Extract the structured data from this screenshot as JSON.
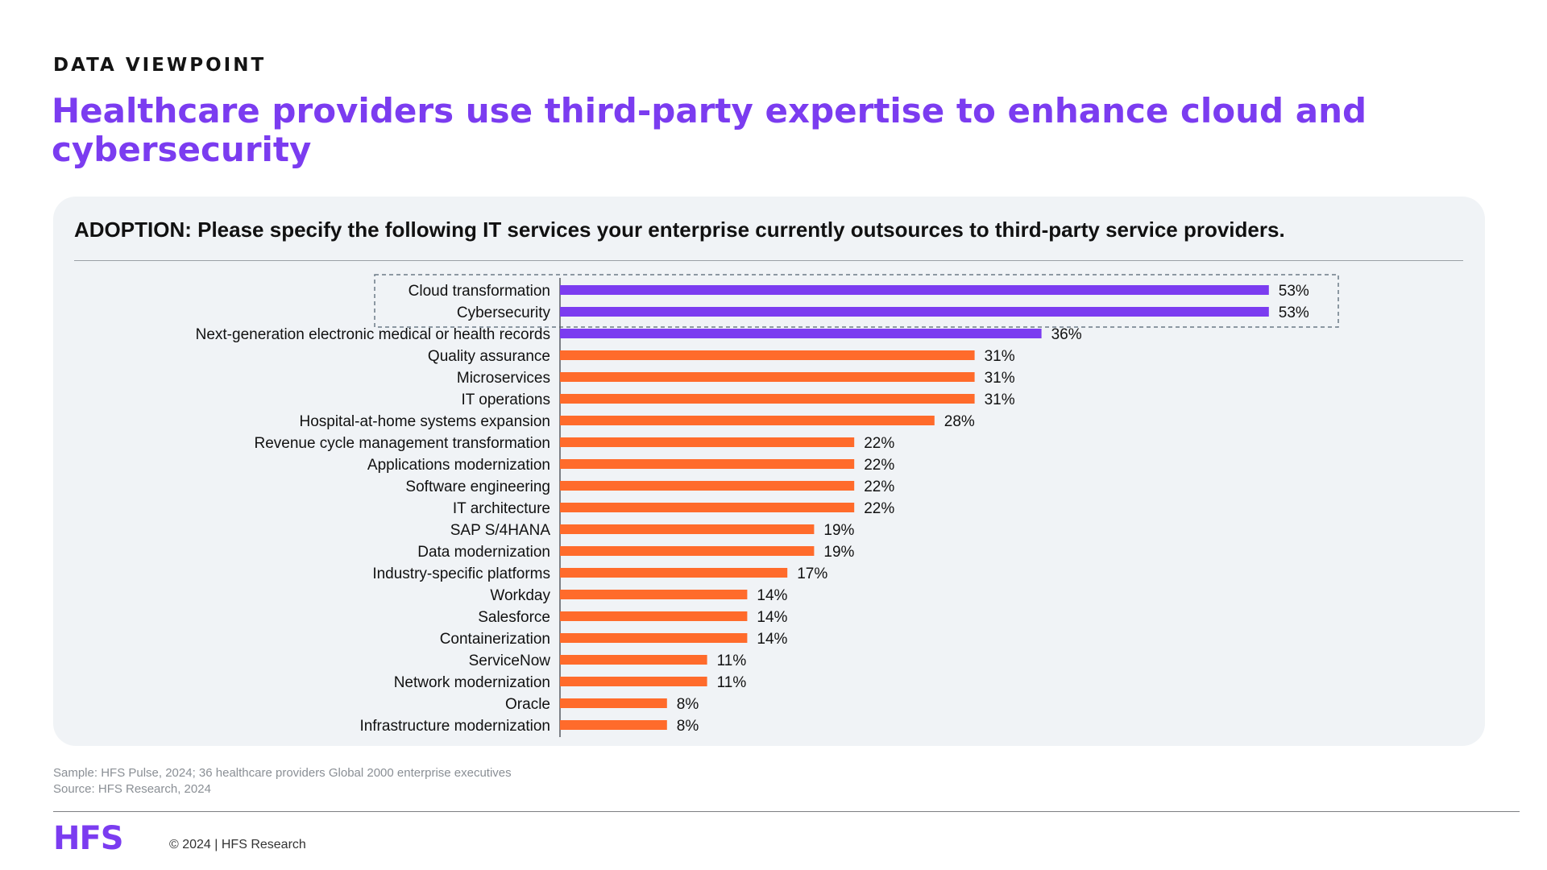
{
  "header": {
    "eyebrow": "DATA VIEWPOINT",
    "title": "Healthcare providers use third-party expertise to enhance cloud and cybersecurity"
  },
  "question": "ADOPTION: Please specify the following IT services your enterprise currently outsources to third-party service providers.",
  "colors": {
    "accent": "#7B3CF0",
    "highlight_bar": "#7B3CF0",
    "bar": "#FF6B2B",
    "panel_bg": "#F0F3F6"
  },
  "chart_data": {
    "type": "bar",
    "orientation": "horizontal",
    "title": "",
    "xlabel": "",
    "ylabel": "",
    "value_suffix": "%",
    "grid": false,
    "legend": "none",
    "categories": [
      "Cloud transformation",
      "Cybersecurity",
      "Next-generation electronic medical or health records",
      "Quality assurance",
      "Microservices",
      "IT operations",
      "Hospital-at-home systems expansion",
      "Revenue cycle management transformation",
      "Applications modernization",
      "Software engineering",
      "IT architecture",
      "SAP S/4HANA",
      "Data modernization",
      "Industry-specific platforms",
      "Workday",
      "Salesforce",
      "Containerization",
      "ServiceNow",
      "Network modernization",
      "Oracle",
      "Infrastructure modernization"
    ],
    "values": [
      53,
      53,
      36,
      31,
      31,
      31,
      28,
      22,
      22,
      22,
      22,
      19,
      19,
      17,
      14,
      14,
      14,
      11,
      11,
      8,
      8
    ],
    "highlighted": [
      0,
      1,
      2
    ],
    "dashed_box_around": [
      0,
      1
    ]
  },
  "footnotes": {
    "sample": "Sample: HFS Pulse, 2024; 36 healthcare providers Global 2000 enterprise executives",
    "source": "Source: HFS Research, 2024"
  },
  "footer": {
    "logo_text": "HFS",
    "copyright": "© 2024 | HFS Research"
  }
}
